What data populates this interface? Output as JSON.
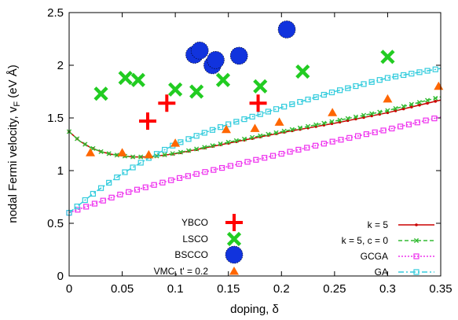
{
  "chart_data": {
    "type": "scatter",
    "xlabel": "doping, δ",
    "ylabel": "nodal Fermi velocity, v",
    "ylabel_sub": "F",
    "ylabel_unit": " (eV Å)",
    "xlim": [
      0,
      0.35
    ],
    "ylim": [
      0,
      2.5
    ],
    "xticks": [
      0,
      0.05,
      0.1,
      0.15,
      0.2,
      0.25,
      0.3,
      0.35
    ],
    "xtick_labels": [
      "0",
      "0.05",
      "0.1",
      "0.15",
      "0.2",
      "0.25",
      "0.3",
      "0.35"
    ],
    "yticks": [
      0,
      0.5,
      1,
      1.5,
      2,
      2.5
    ],
    "ytick_labels": [
      "0",
      "0.5",
      "1",
      "1.5",
      "2",
      "2.5"
    ],
    "grid": false,
    "colors": {
      "ybco": "#ff0000",
      "lsco": "#22cc22",
      "bscco": "#1133dd",
      "vmc": "#ff6600",
      "k5": "#cc0000",
      "k5c0": "#33bb33",
      "gcga": "#ee33ee",
      "ga": "#33ccdd"
    },
    "point_series": [
      {
        "key": "ybco",
        "name": "YBCO",
        "marker": "plus",
        "points": [
          [
            0.074,
            1.47
          ],
          [
            0.092,
            1.64
          ],
          [
            0.178,
            1.64
          ]
        ]
      },
      {
        "key": "lsco",
        "name": "LSCO",
        "marker": "x",
        "points": [
          [
            0.03,
            1.73
          ],
          [
            0.053,
            1.88
          ],
          [
            0.065,
            1.86
          ],
          [
            0.1,
            1.77
          ],
          [
            0.12,
            1.75
          ],
          [
            0.145,
            1.86
          ],
          [
            0.18,
            1.8
          ],
          [
            0.22,
            1.94
          ],
          [
            0.3,
            2.08
          ]
        ]
      },
      {
        "key": "bscco",
        "name": "BSCCO",
        "marker": "circle",
        "points": [
          [
            0.118,
            2.1
          ],
          [
            0.123,
            2.14
          ],
          [
            0.135,
            2.0
          ],
          [
            0.138,
            2.05
          ],
          [
            0.16,
            2.09
          ],
          [
            0.205,
            2.34
          ]
        ]
      },
      {
        "key": "vmc",
        "name": "VMC, t' = 0.2",
        "marker": "triangle",
        "points": [
          [
            0.02,
            1.17
          ],
          [
            0.05,
            1.17
          ],
          [
            0.075,
            1.15
          ],
          [
            0.1,
            1.26
          ],
          [
            0.148,
            1.39
          ],
          [
            0.175,
            1.4
          ],
          [
            0.198,
            1.46
          ],
          [
            0.248,
            1.55
          ],
          [
            0.3,
            1.68
          ],
          [
            0.348,
            1.8
          ]
        ]
      }
    ],
    "line_series": [
      {
        "key": "k5",
        "name": "k = 5",
        "marker": "dot",
        "dash": "",
        "points": [
          [
            0,
            1.37
          ],
          [
            0.01,
            1.28
          ],
          [
            0.02,
            1.22
          ],
          [
            0.03,
            1.18
          ],
          [
            0.04,
            1.155
          ],
          [
            0.05,
            1.14
          ],
          [
            0.06,
            1.13
          ],
          [
            0.07,
            1.13
          ],
          [
            0.08,
            1.135
          ],
          [
            0.1,
            1.16
          ],
          [
            0.12,
            1.2
          ],
          [
            0.15,
            1.26
          ],
          [
            0.2,
            1.36
          ],
          [
            0.25,
            1.45
          ],
          [
            0.3,
            1.55
          ],
          [
            0.35,
            1.67
          ]
        ]
      },
      {
        "key": "k5c0",
        "name": "k = 5, c = 0",
        "marker": "x",
        "dash": "5,3",
        "points": [
          [
            0,
            1.37
          ],
          [
            0.01,
            1.28
          ],
          [
            0.02,
            1.22
          ],
          [
            0.03,
            1.18
          ],
          [
            0.04,
            1.155
          ],
          [
            0.05,
            1.14
          ],
          [
            0.06,
            1.13
          ],
          [
            0.07,
            1.13
          ],
          [
            0.08,
            1.135
          ],
          [
            0.1,
            1.165
          ],
          [
            0.12,
            1.205
          ],
          [
            0.15,
            1.27
          ],
          [
            0.2,
            1.37
          ],
          [
            0.25,
            1.47
          ],
          [
            0.3,
            1.57
          ],
          [
            0.35,
            1.7
          ]
        ]
      },
      {
        "key": "gcga",
        "name": "GCGA",
        "marker": "square",
        "dash": "2,2",
        "points": [
          [
            0,
            0.6
          ],
          [
            0.05,
            0.78
          ],
          [
            0.1,
            0.92
          ],
          [
            0.15,
            1.04
          ],
          [
            0.2,
            1.16
          ],
          [
            0.25,
            1.28
          ],
          [
            0.3,
            1.39
          ],
          [
            0.35,
            1.51
          ]
        ]
      },
      {
        "key": "ga",
        "name": "GA",
        "marker": "square",
        "dash": "7,3,2,3",
        "points": [
          [
            0,
            0.6
          ],
          [
            0.025,
            0.8
          ],
          [
            0.05,
            0.97
          ],
          [
            0.075,
            1.12
          ],
          [
            0.1,
            1.25
          ],
          [
            0.125,
            1.35
          ],
          [
            0.15,
            1.44
          ],
          [
            0.2,
            1.6
          ],
          [
            0.25,
            1.75
          ],
          [
            0.3,
            1.88
          ],
          [
            0.35,
            1.97
          ]
        ]
      }
    ]
  }
}
